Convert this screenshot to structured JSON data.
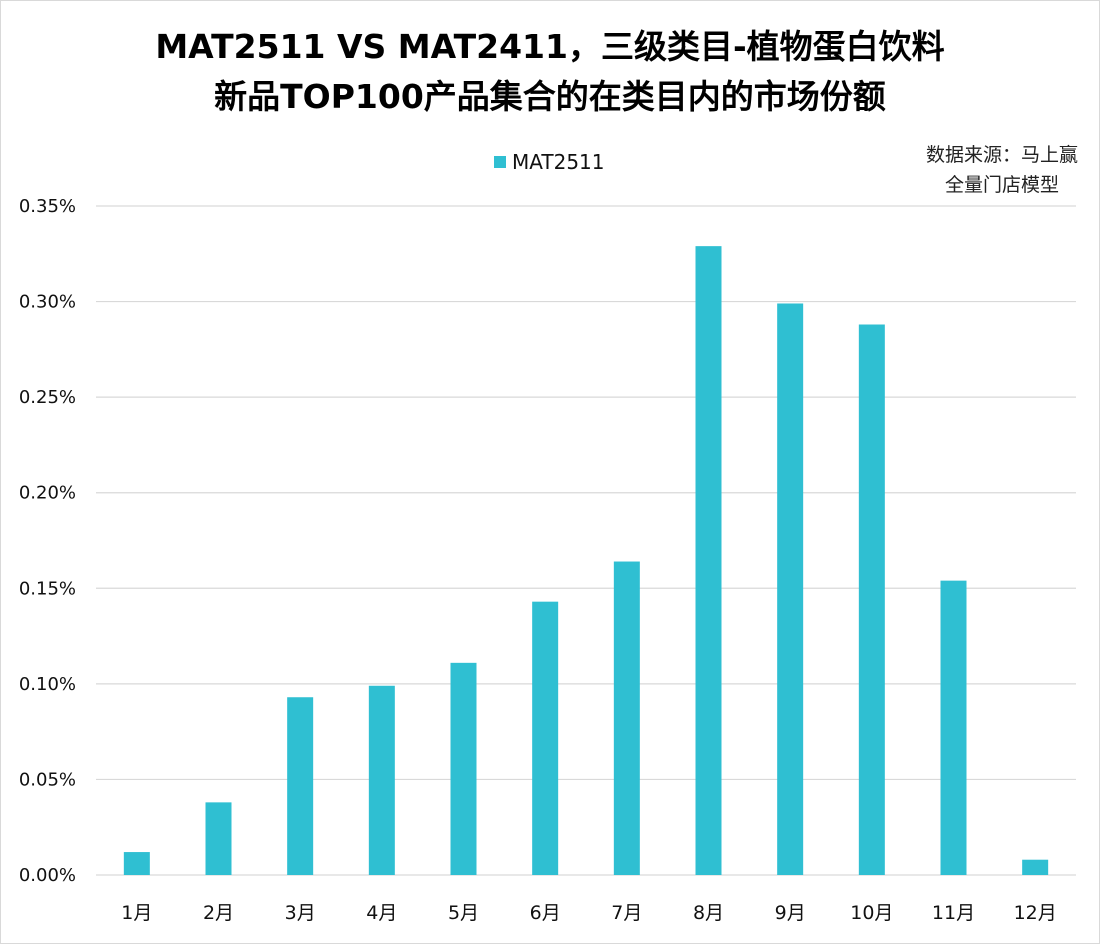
{
  "chart_data": {
    "type": "bar",
    "title_lines": [
      "MAT2511 VS MAT2411，三级类目-植物蛋白饮料",
      "新品TOP100产品集合的在类目内的市场份额"
    ],
    "source_lines": [
      "数据来源：马上赢",
      "全量门店模型"
    ],
    "categories": [
      "1月",
      "2月",
      "3月",
      "4月",
      "5月",
      "6月",
      "7月",
      "8月",
      "9月",
      "10月",
      "11月",
      "12月"
    ],
    "series": [
      {
        "name": "MAT2511",
        "color": "#2fbfd2",
        "values": [
          0.012,
          0.038,
          0.093,
          0.099,
          0.111,
          0.143,
          0.164,
          0.329,
          0.299,
          0.288,
          0.154,
          0.008
        ]
      }
    ],
    "y_ticks": [
      "0.00%",
      "0.05%",
      "0.10%",
      "0.15%",
      "0.20%",
      "0.25%",
      "0.30%",
      "0.35%"
    ],
    "ylim": [
      0,
      0.35
    ],
    "y_unit": "%",
    "grid": true,
    "legend_position": "top-center",
    "gridline_color": "#d9d9d9"
  }
}
